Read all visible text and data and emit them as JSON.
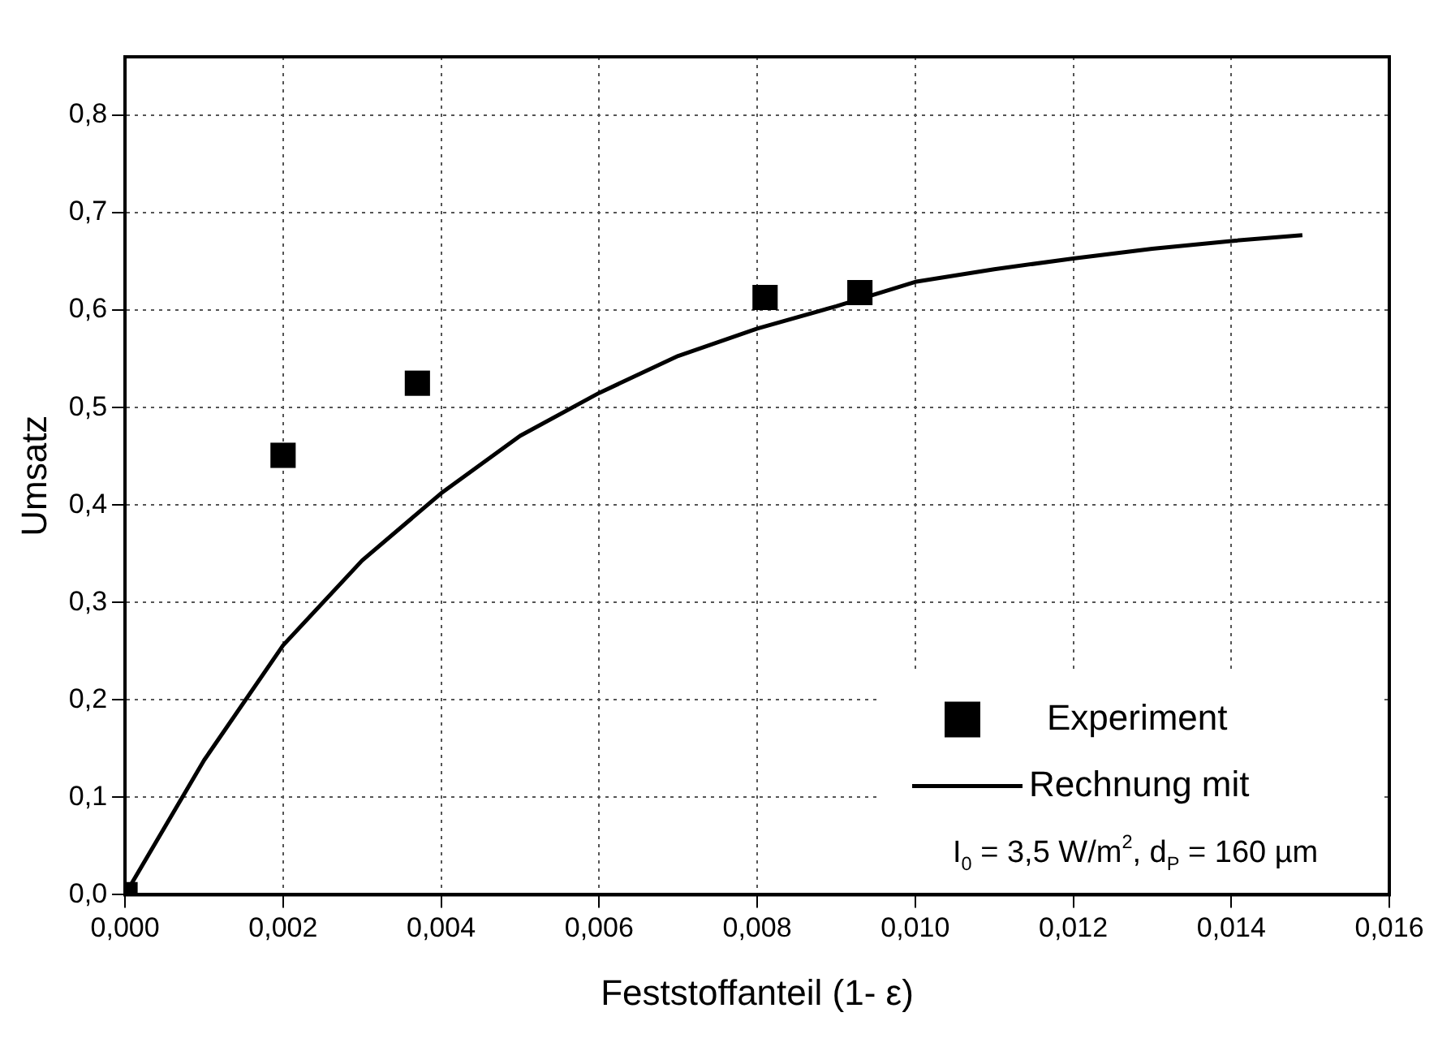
{
  "chart_data": {
    "type": "scatter",
    "xlabel": "Feststoffanteil (1- ε)",
    "ylabel": "Umsatz",
    "xlim": [
      0,
      0.016
    ],
    "ylim": [
      0,
      0.86
    ],
    "xticks": [
      {
        "value": 0,
        "label": "0,000"
      },
      {
        "value": 0.002,
        "label": "0,002"
      },
      {
        "value": 0.004,
        "label": "0,004"
      },
      {
        "value": 0.006,
        "label": "0,006"
      },
      {
        "value": 0.008,
        "label": "0,008"
      },
      {
        "value": 0.01,
        "label": "0,010"
      },
      {
        "value": 0.012,
        "label": "0,012"
      },
      {
        "value": 0.014,
        "label": "0,014"
      },
      {
        "value": 0.016,
        "label": "0,016"
      }
    ],
    "yticks": [
      {
        "value": 0,
        "label": "0,0"
      },
      {
        "value": 0.1,
        "label": "0,1"
      },
      {
        "value": 0.2,
        "label": "0,2"
      },
      {
        "value": 0.3,
        "label": "0,3"
      },
      {
        "value": 0.4,
        "label": "0,4"
      },
      {
        "value": 0.5,
        "label": "0,5"
      },
      {
        "value": 0.6,
        "label": "0,6"
      },
      {
        "value": 0.7,
        "label": "0,7"
      },
      {
        "value": 0.8,
        "label": "0,8"
      }
    ],
    "grid": true,
    "legend": "bottom right",
    "marker": "square",
    "series": [
      {
        "name": "Experiment",
        "color": "#000000",
        "x": [
          0,
          0.002,
          0.0037,
          0.0081,
          0.0093
        ],
        "values": [
          0,
          0.451,
          0.525,
          0.613,
          0.618
        ]
      },
      {
        "name": "Rechnung mit",
        "type": "line",
        "color": "#000000",
        "marker": "none",
        "line_style": "solid",
        "x": [
          0,
          0.001,
          0.002,
          0.003,
          0.004,
          0.005,
          0.006,
          0.007,
          0.008,
          0.009,
          0.01,
          0.011,
          0.012,
          0.013,
          0.014,
          0.0149
        ],
        "values": [
          0,
          0.138,
          0.256,
          0.343,
          0.412,
          0.471,
          0.515,
          0.553,
          0.581,
          0.604,
          0.629,
          0.642,
          0.653,
          0.663,
          0.671,
          0.677
        ]
      }
    ],
    "annotations": [
      "I$_{0}$ = 3,5 W/m$^{2}$, d$_{P}$ = 160 µm"
    ]
  }
}
